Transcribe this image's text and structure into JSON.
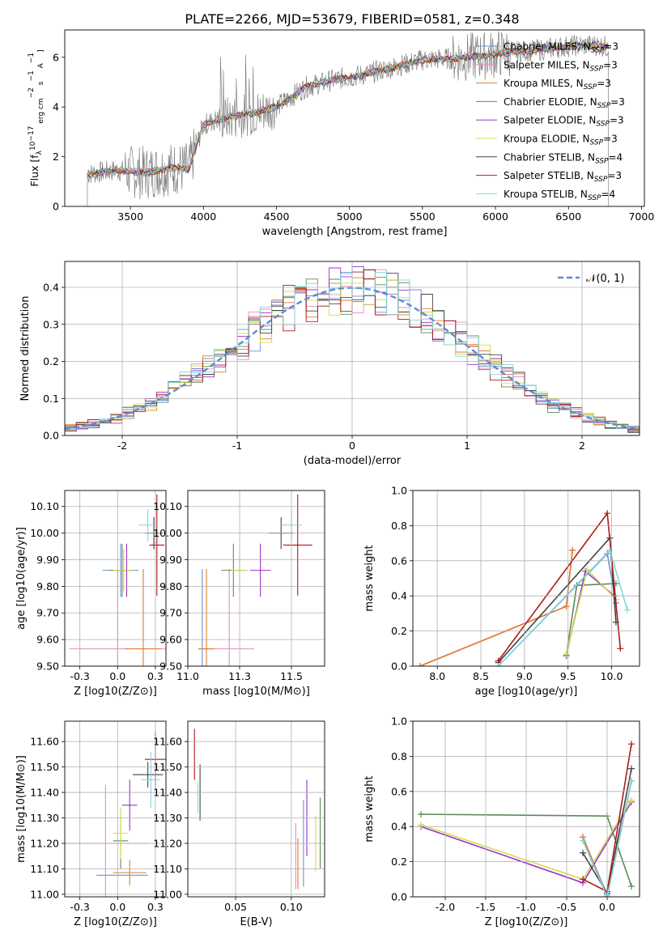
{
  "figure_title": "PLATE=2266, MJD=53679, FIBERID=0581, z=0.348",
  "models": [
    {
      "name": "Chabrier MILES",
      "nssp": "3",
      "color": "#6a8fd4"
    },
    {
      "name": "Salpeter MILES",
      "nssp": "3",
      "color": "#e58bbf"
    },
    {
      "name": "Kroupa MILES",
      "nssp": "3",
      "color": "#e07b2a"
    },
    {
      "name": "Chabrier ELODIE",
      "nssp": "3",
      "color": "#5b8a5b"
    },
    {
      "name": "Salpeter ELODIE",
      "nssp": "3",
      "color": "#9b30c8"
    },
    {
      "name": "Kroupa ELODIE",
      "nssp": "3",
      "color": "#cfe04a"
    },
    {
      "name": "Chabrier STELIB",
      "nssp": "4",
      "color": "#444444"
    },
    {
      "name": "Salpeter STELIB",
      "nssp": "3",
      "color": "#b01818"
    },
    {
      "name": "Kroupa STELIB",
      "nssp": "4",
      "color": "#7fd6e0"
    }
  ],
  "chart_data": [
    {
      "id": "spectrum",
      "type": "line",
      "xlabel": "wavelength [Angstrom, rest frame]",
      "ylabel_parts": [
        "Flux [f",
        "λ",
        "10",
        "−17",
        " erg cm",
        "−2",
        " s",
        "−1",
        " A",
        "−1",
        "]"
      ],
      "xlim": [
        3050,
        7020
      ],
      "ylim": [
        0,
        7.1
      ],
      "xticks": [
        3500,
        4000,
        4500,
        5000,
        5500,
        6000,
        6500,
        7000
      ],
      "yticks": [
        0,
        2,
        4,
        6
      ],
      "legend_position": "right",
      "data_color": "#808080",
      "continuum": {
        "x": [
          3200,
          3400,
          3600,
          3800,
          3900,
          4000,
          4100,
          4300,
          4500,
          4700,
          4900,
          5100,
          5300,
          5500,
          5700,
          5900,
          6100,
          6300,
          6500,
          6700,
          6780
        ],
        "y": [
          1.3,
          1.45,
          1.35,
          1.55,
          1.5,
          3.3,
          3.5,
          3.7,
          4.0,
          4.8,
          5.1,
          5.3,
          5.6,
          5.9,
          5.95,
          6.05,
          6.2,
          6.3,
          6.45,
          6.5,
          6.4
        ]
      }
    },
    {
      "id": "histogram",
      "type": "bar",
      "xlabel": "(data-model)/error",
      "ylabel": "Normed distribution",
      "xlim": [
        -2.5,
        2.5
      ],
      "ylim": [
        0,
        0.47
      ],
      "xticks": [
        -2,
        -1,
        0,
        1,
        2
      ],
      "yticks": [
        0.0,
        0.1,
        0.2,
        0.3,
        0.4
      ],
      "reference_curve": {
        "name": "𝒩(0, 1)",
        "color": "#5b8bd6"
      },
      "legend_position": "top-right"
    },
    {
      "id": "age-vs-Z",
      "type": "scatter",
      "xlabel": "Z [log10(Z/Z⊙)]",
      "ylabel": "age  [log10(age/yr)]",
      "xlim": [
        -0.35,
        0.32
      ],
      "ylim": [
        9.5,
        10.16
      ],
      "xticks": [
        -0.25,
        0.0,
        0.25
      ],
      "yticks": [
        9.5,
        9.6,
        9.7,
        9.8,
        9.9,
        10.0,
        10.1
      ],
      "points": [
        {
          "model": 0,
          "x": 0.02,
          "y": 9.86,
          "xerr": 0.12,
          "yerr": 0.1
        },
        {
          "model": 1,
          "x": 0.0,
          "y": 9.565,
          "xerr": 0.32,
          "yerr": 0.3
        },
        {
          "model": 2,
          "x": 0.17,
          "y": 9.565,
          "xerr": 0.12,
          "yerr": 0.3
        },
        {
          "model": 3,
          "x": 0.03,
          "y": 9.86,
          "xerr": 0.08,
          "yerr": 0.1
        },
        {
          "model": 4,
          "x": 0.06,
          "y": 9.86,
          "xerr": 0.05,
          "yerr": 0.1
        },
        {
          "model": 5,
          "x": 0.04,
          "y": 9.86,
          "xerr": 0.07,
          "yerr": 0.08
        },
        {
          "model": 6,
          "x": 0.24,
          "y": 10.0,
          "xerr": 0.06,
          "yerr": 0.06
        },
        {
          "model": 7,
          "x": 0.26,
          "y": 9.955,
          "xerr": 0.05,
          "yerr": 0.19
        },
        {
          "model": 8,
          "x": 0.2,
          "y": 10.03,
          "xerr": 0.06,
          "yerr": 0.06
        }
      ]
    },
    {
      "id": "age-vs-mass",
      "type": "scatter",
      "xlabel": "mass [log10(M/M⊙)]",
      "ylabel": "",
      "xlim": [
        11.0,
        11.66
      ],
      "ylim": [
        9.5,
        10.16
      ],
      "xticks": [
        11.0,
        11.25,
        11.5
      ],
      "yticks": [
        9.5,
        9.6,
        9.7,
        9.8,
        9.9,
        10.0,
        10.1
      ],
      "points": [
        {
          "model": 0,
          "x": 11.07,
          "y": 9.565,
          "xerr": 0.02,
          "yerr": 0.3
        },
        {
          "model": 1,
          "x": 11.2,
          "y": 9.565,
          "xerr": 0.12,
          "yerr": 0.3
        },
        {
          "model": 2,
          "x": 11.09,
          "y": 9.565,
          "xerr": 0.04,
          "yerr": 0.3
        },
        {
          "model": 3,
          "x": 11.22,
          "y": 9.86,
          "xerr": 0.06,
          "yerr": 0.1
        },
        {
          "model": 4,
          "x": 11.35,
          "y": 9.86,
          "xerr": 0.05,
          "yerr": 0.1
        },
        {
          "model": 5,
          "x": 11.25,
          "y": 9.86,
          "xerr": 0.04,
          "yerr": 0.08
        },
        {
          "model": 6,
          "x": 11.45,
          "y": 10.0,
          "xerr": 0.06,
          "yerr": 0.06
        },
        {
          "model": 7,
          "x": 11.53,
          "y": 9.955,
          "xerr": 0.07,
          "yerr": 0.19
        },
        {
          "model": 8,
          "x": 11.5,
          "y": 10.03,
          "xerr": 0.05,
          "yerr": 0.06
        }
      ]
    },
    {
      "id": "massweight-vs-age",
      "type": "line",
      "xlabel": "age  [log10(age/yr)]",
      "ylabel": "mass weight",
      "xlim": [
        7.72,
        10.32
      ],
      "ylim": [
        0,
        1.0
      ],
      "xticks": [
        8.0,
        8.5,
        9.0,
        9.5,
        10.0
      ],
      "yticks": [
        0.0,
        0.2,
        0.4,
        0.6,
        0.8,
        1.0
      ],
      "series": [
        {
          "model": 0,
          "x": [
            8.7,
            9.95,
            10.05
          ],
          "y": [
            0.0,
            0.64,
            0.36
          ]
        },
        {
          "model": 1,
          "x": [
            7.8,
            9.48,
            9.55
          ],
          "y": [
            0.0,
            0.34,
            0.66
          ]
        },
        {
          "model": 2,
          "x": [
            7.8,
            9.48,
            9.55
          ],
          "y": [
            0.0,
            0.34,
            0.66
          ]
        },
        {
          "model": 3,
          "x": [
            9.48,
            9.6,
            10.05
          ],
          "y": [
            0.06,
            0.46,
            0.47
          ]
        },
        {
          "model": 4,
          "x": [
            9.48,
            9.7,
            10.03
          ],
          "y": [
            0.06,
            0.54,
            0.4
          ]
        },
        {
          "model": 5,
          "x": [
            9.48,
            9.72,
            10.05
          ],
          "y": [
            0.07,
            0.55,
            0.38
          ]
        },
        {
          "model": 6,
          "x": [
            8.7,
            9.98,
            10.05
          ],
          "y": [
            0.02,
            0.73,
            0.25
          ]
        },
        {
          "model": 7,
          "x": [
            8.7,
            9.95,
            10.1
          ],
          "y": [
            0.03,
            0.87,
            0.1
          ]
        },
        {
          "model": 8,
          "x": [
            8.7,
            9.98,
            10.18
          ],
          "y": [
            0.0,
            0.66,
            0.32
          ]
        }
      ]
    },
    {
      "id": "mass-vs-Z",
      "type": "scatter",
      "xlabel": "Z [log10(Z/Z⊙)]",
      "ylabel": "mass [log10(M/M⊙)]",
      "xlim": [
        -0.35,
        0.32
      ],
      "ylim": [
        10.99,
        11.68
      ],
      "xticks": [
        -0.25,
        0.0,
        0.25
      ],
      "yticks": [
        11.0,
        11.1,
        11.2,
        11.3,
        11.4,
        11.5,
        11.6
      ],
      "points": [
        {
          "model": 0,
          "x": 0.03,
          "y": 11.075,
          "xerr": 0.17,
          "yerr": 0.0
        },
        {
          "model": 1,
          "x": -0.08,
          "y": 11.2,
          "xerr": 0.28,
          "yerr": 0.23
        },
        {
          "model": 2,
          "x": 0.08,
          "y": 11.085,
          "xerr": 0.11,
          "yerr": 0.05
        },
        {
          "model": 3,
          "x": 0.02,
          "y": 11.21,
          "xerr": 0.05,
          "yerr": 0.11
        },
        {
          "model": 4,
          "x": 0.08,
          "y": 11.35,
          "xerr": 0.05,
          "yerr": 0.1
        },
        {
          "model": 5,
          "x": 0.02,
          "y": 11.24,
          "xerr": 0.05,
          "yerr": 0.1
        },
        {
          "model": 6,
          "x": 0.2,
          "y": 11.47,
          "xerr": 0.1,
          "yerr": 0.05
        },
        {
          "model": 7,
          "x": 0.25,
          "y": 11.53,
          "xerr": 0.07,
          "yerr": 0.11
        },
        {
          "model": 8,
          "x": 0.22,
          "y": 11.45,
          "xerr": 0.06,
          "yerr": 0.11
        }
      ]
    },
    {
      "id": "mass-vs-EBV",
      "type": "scatter",
      "xlabel": "E(B-V)",
      "ylabel": "",
      "xlim": [
        0.007,
        0.13
      ],
      "ylim": [
        10.99,
        11.68
      ],
      "xticks": [
        0.05,
        0.1
      ],
      "yticks": [
        11.0,
        11.1,
        11.2,
        11.3,
        11.4,
        11.5,
        11.6
      ],
      "points": [
        {
          "model": 0,
          "x": 0.111,
          "y": 11.2,
          "xerr": 0.0,
          "yerr": 0.17
        },
        {
          "model": 1,
          "x": 0.104,
          "y": 11.15,
          "xerr": 0.0,
          "yerr": 0.13
        },
        {
          "model": 2,
          "x": 0.106,
          "y": 11.12,
          "xerr": 0.0,
          "yerr": 0.1
        },
        {
          "model": 3,
          "x": 0.126,
          "y": 11.24,
          "xerr": 0.0,
          "yerr": 0.14
        },
        {
          "model": 4,
          "x": 0.114,
          "y": 11.3,
          "xerr": 0.0,
          "yerr": 0.15
        },
        {
          "model": 5,
          "x": 0.122,
          "y": 11.2,
          "xerr": 0.0,
          "yerr": 0.11
        },
        {
          "model": 6,
          "x": 0.018,
          "y": 11.4,
          "xerr": 0.0,
          "yerr": 0.11
        },
        {
          "model": 7,
          "x": 0.013,
          "y": 11.55,
          "xerr": 0.0,
          "yerr": 0.1
        },
        {
          "model": 8,
          "x": 0.016,
          "y": 11.38,
          "xerr": 0.0,
          "yerr": 0.06
        }
      ]
    },
    {
      "id": "massweight-vs-Z",
      "type": "line",
      "xlabel": "Z [log10(Z/Z⊙)]",
      "ylabel": "mass weight",
      "xlim": [
        -2.4,
        0.4
      ],
      "ylim": [
        0,
        1.0
      ],
      "xticks": [
        -2.0,
        -1.5,
        -1.0,
        -0.5,
        0.0
      ],
      "yticks": [
        0.0,
        0.2,
        0.4,
        0.6,
        0.8,
        1.0
      ],
      "series": [
        {
          "model": 0,
          "x": [
            -0.3,
            0.0,
            0.3
          ],
          "y": [
            0.34,
            0.01,
            0.66
          ]
        },
        {
          "model": 1,
          "x": [
            -0.3,
            0.0,
            0.3
          ],
          "y": [
            0.34,
            0.0,
            0.66
          ]
        },
        {
          "model": 2,
          "x": [
            -0.3,
            0.0,
            0.3
          ],
          "y": [
            0.34,
            0.0,
            0.66
          ]
        },
        {
          "model": 3,
          "x": [
            -2.3,
            0.0,
            0.3
          ],
          "y": [
            0.47,
            0.46,
            0.06
          ]
        },
        {
          "model": 4,
          "x": [
            -2.3,
            -0.3,
            0.3
          ],
          "y": [
            0.4,
            0.08,
            0.54
          ]
        },
        {
          "model": 5,
          "x": [
            -2.3,
            -0.3,
            0.3
          ],
          "y": [
            0.41,
            0.1,
            0.55
          ]
        },
        {
          "model": 6,
          "x": [
            -0.3,
            0.0,
            0.3
          ],
          "y": [
            0.25,
            0.02,
            0.73
          ]
        },
        {
          "model": 7,
          "x": [
            -0.3,
            0.0,
            0.3
          ],
          "y": [
            0.1,
            0.03,
            0.87
          ]
        },
        {
          "model": 8,
          "x": [
            -0.3,
            0.0,
            0.3
          ],
          "y": [
            0.32,
            0.0,
            0.66
          ]
        }
      ]
    }
  ]
}
